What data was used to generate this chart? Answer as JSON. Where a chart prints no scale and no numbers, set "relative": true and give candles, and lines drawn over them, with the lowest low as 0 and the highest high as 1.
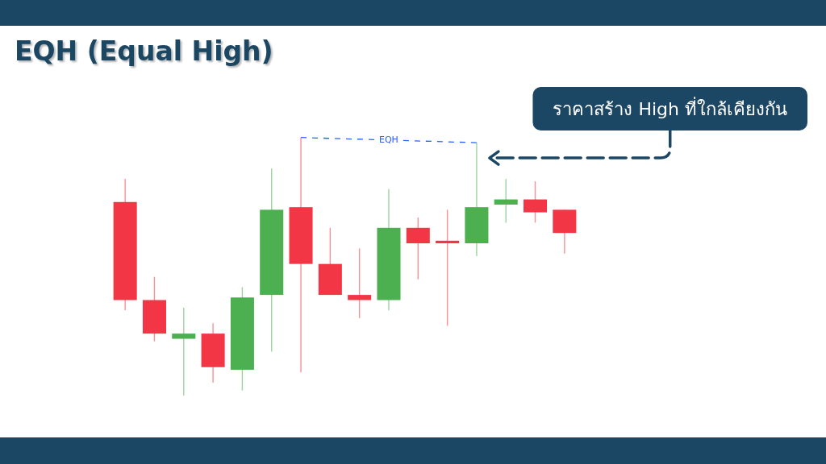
{
  "chart_data": {
    "type": "candlestick",
    "title": "EQH (Equal High)",
    "relative": true,
    "categories": [
      null,
      null,
      null,
      null,
      null,
      null,
      null,
      null,
      null,
      null,
      null,
      null,
      null,
      null,
      null,
      null
    ],
    "ohlc": [
      [
        0.75,
        0.84,
        0.33,
        0.37
      ],
      [
        0.37,
        0.46,
        0.21,
        0.24
      ],
      [
        0.22,
        0.34,
        0,
        0.24
      ],
      [
        0.24,
        0.28,
        0.05,
        0.11
      ],
      [
        0.1,
        0.42,
        0.02,
        0.38
      ],
      [
        0.39,
        0.88,
        0.17,
        0.72
      ],
      [
        0.73,
        1,
        0.09,
        0.51
      ],
      [
        0.51,
        0.65,
        0.39,
        0.39
      ],
      [
        0.39,
        0.57,
        0.3,
        0.37
      ],
      [
        0.37,
        0.8,
        0.33,
        0.65
      ],
      [
        0.65,
        0.69,
        0.45,
        0.59
      ],
      [
        0.6,
        0.72,
        0.27,
        0.59
      ],
      [
        0.59,
        0.98,
        0.54,
        0.73
      ],
      [
        0.74,
        0.84,
        0.67,
        0.76
      ],
      [
        0.76,
        0.83,
        0.67,
        0.71
      ],
      [
        0.72,
        0.72,
        0.55,
        0.63
      ]
    ],
    "colors": [
      "#f23645",
      "#f23645",
      "#4caf50",
      "#f23645",
      "#4caf50",
      "#4caf50",
      "#f23645",
      "#f23645",
      "#f23645",
      "#4caf50",
      "#f23645",
      "#f23645",
      "#4caf50",
      "#4caf50",
      "#f23645",
      "#f23645"
    ],
    "series": [
      {
        "type": "line",
        "name": "EQH",
        "color": "#2962ff",
        "line_style": "dashed",
        "values": [
          null,
          null,
          null,
          null,
          null,
          null,
          1,
          null,
          null,
          null,
          null,
          null,
          0.98,
          null,
          null,
          null
        ]
      }
    ],
    "annotations": [
      "ราคาสร้าง High ที่ใกล้เคียงกัน"
    ]
  }
}
